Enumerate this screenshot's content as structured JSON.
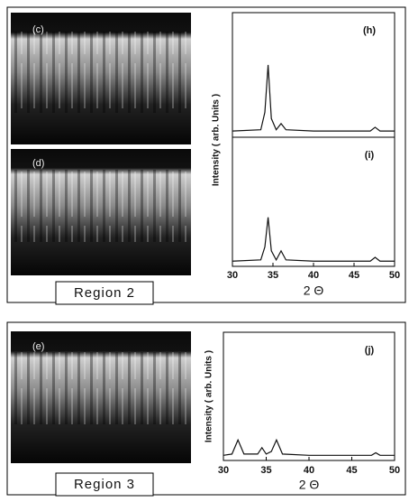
{
  "chart_data": [
    {
      "type": "line",
      "title": "(h)",
      "ylabel": "Intensity ( arb. Units )",
      "xlim": [
        30,
        50
      ],
      "ylim": [
        0,
        1
      ],
      "x": [
        30,
        33.5,
        34,
        34.4,
        34.8,
        35.4,
        36,
        36.6,
        40,
        45,
        47,
        47.6,
        48.2,
        50
      ],
      "series": [
        {
          "color": "#111111",
          "values": [
            0.05,
            0.06,
            0.2,
            0.58,
            0.15,
            0.06,
            0.11,
            0.06,
            0.05,
            0.05,
            0.05,
            0.08,
            0.05,
            0.05
          ]
        }
      ]
    },
    {
      "type": "line",
      "title": "(i)",
      "xlabel": "2 Θ",
      "xlim": [
        30,
        50
      ],
      "ylim": [
        0,
        1
      ],
      "xticks": [
        30,
        35,
        40,
        45,
        50
      ],
      "x": [
        30,
        33.5,
        34,
        34.4,
        34.8,
        35.4,
        36,
        36.6,
        40,
        45,
        47,
        47.6,
        48.2,
        50
      ],
      "series": [
        {
          "color": "#111111",
          "values": [
            0.04,
            0.05,
            0.15,
            0.38,
            0.12,
            0.05,
            0.12,
            0.05,
            0.04,
            0.04,
            0.04,
            0.07,
            0.04,
            0.04
          ]
        }
      ]
    },
    {
      "type": "line",
      "title": "(j)",
      "ylabel": "Intensity ( arb. Units )",
      "xlabel": "2 Θ",
      "xlim": [
        30,
        50
      ],
      "ylim": [
        0,
        1
      ],
      "xticks": [
        30,
        35,
        40,
        45,
        50
      ],
      "x": [
        30,
        31,
        31.7,
        32.4,
        34,
        34.5,
        35,
        35.6,
        36.2,
        36.9,
        40,
        45,
        47.3,
        47.8,
        48.3,
        50
      ],
      "series": [
        {
          "color": "#111111",
          "values": [
            0.04,
            0.05,
            0.16,
            0.05,
            0.05,
            0.1,
            0.05,
            0.07,
            0.16,
            0.05,
            0.04,
            0.04,
            0.04,
            0.06,
            0.04,
            0.04
          ]
        }
      ]
    }
  ],
  "images": [
    "(c)",
    "(d)",
    "(e)"
  ],
  "regions": [
    "Region 2",
    "Region 3"
  ]
}
